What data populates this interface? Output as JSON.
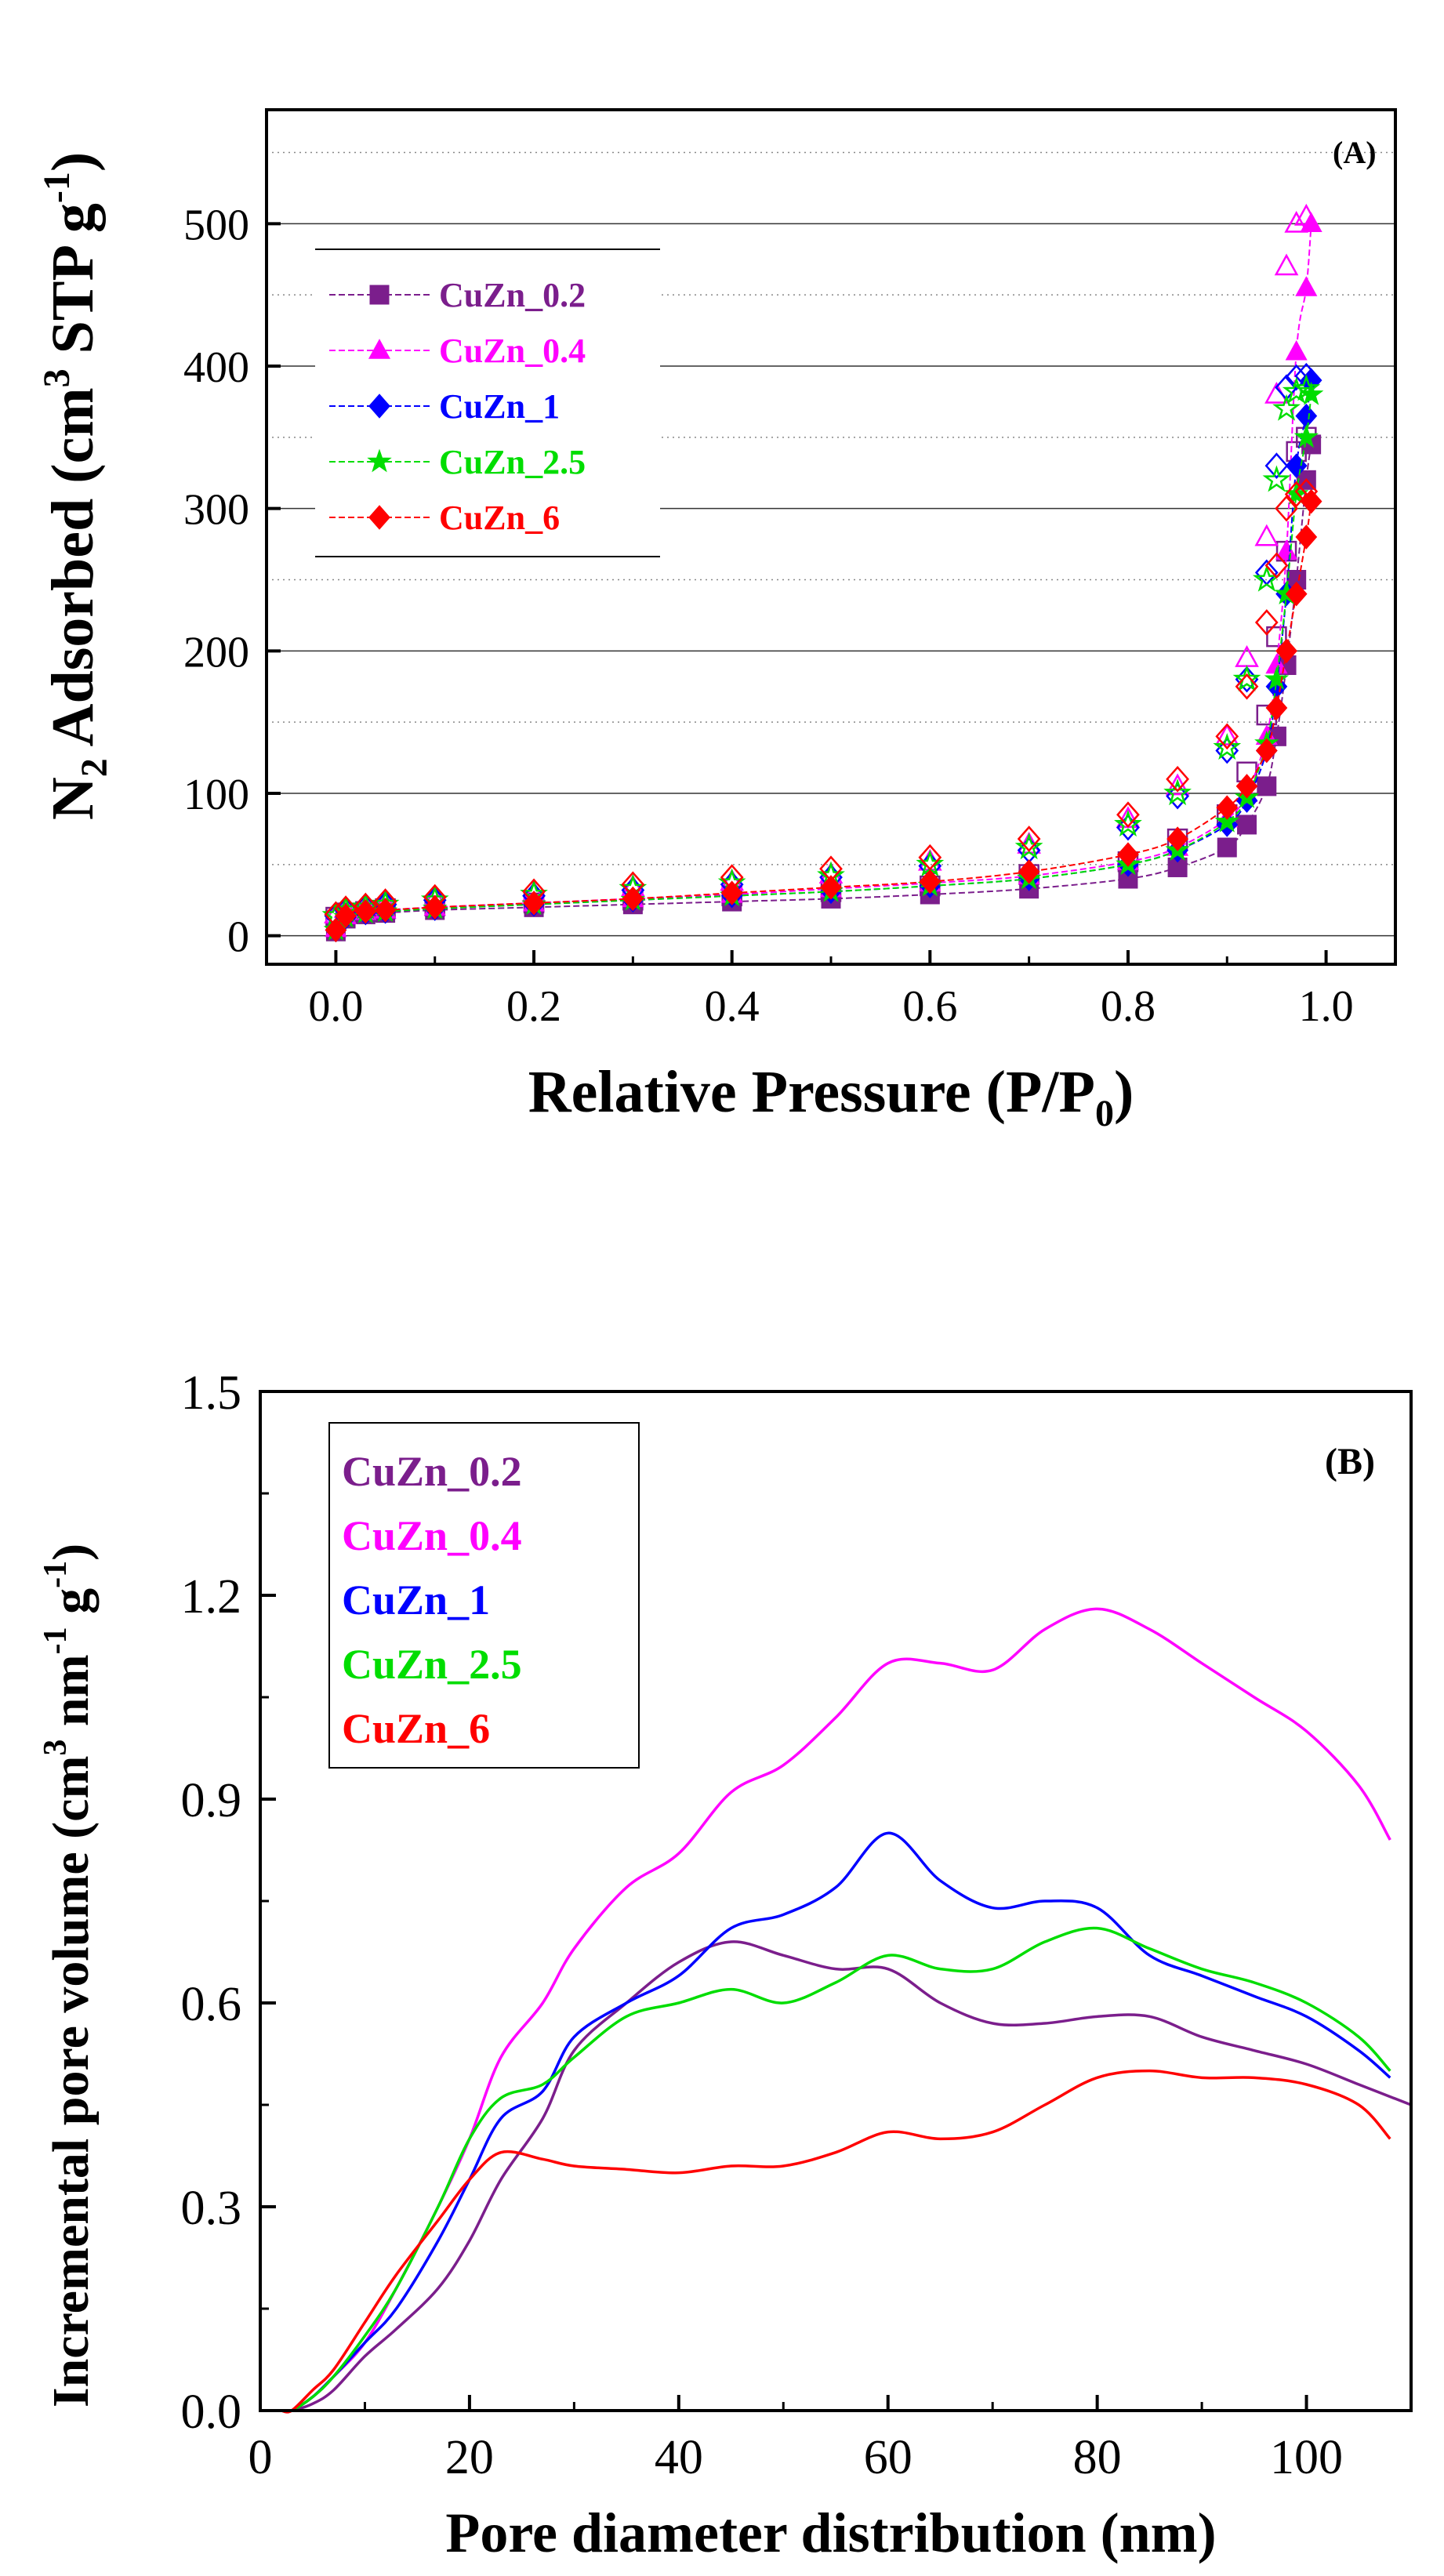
{
  "chart_data": [
    {
      "type": "scatter",
      "panel_label": "(A)",
      "xlabel": "Relative Pressure (P/P",
      "xlabel_sub": "0",
      "xlabel_suffix": ")",
      "ylabel_prefix": "N",
      "ylabel_sub": "2",
      "ylabel_mid": " Adsorbed (cm",
      "ylabel_sup": "3",
      "ylabel_mid2": " STP g",
      "ylabel_sup2": "-1",
      "ylabel_suffix": ")",
      "xlim": [
        -0.07,
        1.07
      ],
      "ylim": [
        -20,
        580
      ],
      "xticks": [
        0.0,
        0.2,
        0.4,
        0.6,
        0.8,
        1.0
      ],
      "xtick_labels": [
        "0.0",
        "0.2",
        "0.4",
        "0.6",
        "0.8",
        "1.0"
      ],
      "yticks": [
        0,
        100,
        200,
        300,
        400,
        500
      ],
      "ytick_labels": [
        "0",
        "100",
        "200",
        "300",
        "400",
        "500"
      ],
      "grid_major": [
        0,
        100,
        200,
        300,
        400,
        500
      ],
      "grid_minor": [
        50,
        150,
        250,
        350,
        450,
        550
      ],
      "legend_position": "top-left",
      "series": [
        {
          "name": "CuZn_0.2",
          "color": "#7B1E8C",
          "marker": "square",
          "x": [
            0.0,
            0.01,
            0.03,
            0.05,
            0.1,
            0.2,
            0.3,
            0.4,
            0.5,
            0.6,
            0.7,
            0.8,
            0.85,
            0.9,
            0.92,
            0.94,
            0.95,
            0.96,
            0.97,
            0.98,
            0.985
          ],
          "adsorption": [
            3,
            12,
            15,
            16,
            18,
            20,
            22,
            24,
            26,
            29,
            33,
            40,
            48,
            62,
            78,
            105,
            140,
            190,
            250,
            320,
            345
          ],
          "desorption": [
            13,
            16,
            17,
            19,
            21,
            23,
            25,
            28,
            31,
            35,
            43,
            52,
            68,
            85,
            115,
            155,
            210,
            270,
            340,
            350
          ]
        },
        {
          "name": "CuZn_0.4",
          "color": "#FF00FF",
          "marker": "triangle",
          "x": [
            0.0,
            0.01,
            0.03,
            0.05,
            0.1,
            0.2,
            0.3,
            0.4,
            0.5,
            0.6,
            0.7,
            0.8,
            0.85,
            0.9,
            0.92,
            0.94,
            0.95,
            0.96,
            0.97,
            0.98,
            0.985
          ],
          "adsorption": [
            5,
            14,
            17,
            18,
            20,
            23,
            26,
            29,
            33,
            37,
            42,
            52,
            62,
            82,
            100,
            140,
            190,
            270,
            410,
            455,
            500
          ],
          "desorption": [
            15,
            19,
            21,
            23,
            26,
            30,
            34,
            38,
            43,
            52,
            64,
            82,
            105,
            140,
            195,
            280,
            380,
            470,
            500,
            505
          ]
        },
        {
          "name": "CuZn_1",
          "color": "#0000FF",
          "marker": "diamond",
          "x": [
            0.0,
            0.01,
            0.03,
            0.05,
            0.1,
            0.2,
            0.3,
            0.4,
            0.5,
            0.6,
            0.7,
            0.8,
            0.85,
            0.9,
            0.92,
            0.94,
            0.95,
            0.96,
            0.97,
            0.98,
            0.985
          ],
          "adsorption": [
            4,
            13,
            16,
            17,
            19,
            22,
            25,
            28,
            31,
            35,
            40,
            50,
            60,
            78,
            95,
            130,
            175,
            240,
            330,
            365,
            390
          ],
          "desorption": [
            14,
            18,
            20,
            22,
            25,
            28,
            32,
            36,
            41,
            49,
            60,
            76,
            98,
            130,
            180,
            255,
            330,
            385,
            392,
            393
          ]
        },
        {
          "name": "CuZn_2.5",
          "color": "#00DD00",
          "marker": "star",
          "x": [
            0.0,
            0.01,
            0.03,
            0.05,
            0.1,
            0.2,
            0.3,
            0.4,
            0.5,
            0.6,
            0.7,
            0.8,
            0.85,
            0.9,
            0.92,
            0.94,
            0.95,
            0.96,
            0.97,
            0.98,
            0.985
          ],
          "adsorption": [
            4,
            13,
            16,
            17,
            19,
            22,
            25,
            28,
            31,
            35,
            40,
            50,
            60,
            80,
            97,
            135,
            180,
            240,
            310,
            350,
            380
          ],
          "desorption": [
            14,
            18,
            20,
            22,
            25,
            29,
            33,
            37,
            42,
            50,
            62,
            78,
            100,
            132,
            180,
            250,
            320,
            370,
            382,
            384
          ]
        },
        {
          "name": "CuZn_6",
          "color": "#FF0000",
          "marker": "diamond",
          "x": [
            0.0,
            0.01,
            0.03,
            0.05,
            0.1,
            0.2,
            0.3,
            0.4,
            0.5,
            0.6,
            0.7,
            0.8,
            0.85,
            0.9,
            0.92,
            0.94,
            0.95,
            0.96,
            0.97,
            0.98,
            0.985
          ],
          "adsorption": [
            4,
            14,
            17,
            18,
            20,
            23,
            26,
            30,
            34,
            38,
            45,
            57,
            68,
            90,
            105,
            130,
            160,
            200,
            240,
            280,
            305
          ],
          "desorption": [
            15,
            19,
            21,
            24,
            27,
            31,
            36,
            41,
            47,
            55,
            68,
            85,
            110,
            140,
            175,
            220,
            260,
            300,
            310,
            312
          ]
        }
      ]
    },
    {
      "type": "line",
      "panel_label": "(B)",
      "xlabel": "Pore diameter distribution (nm)",
      "ylabel_prefix": "Incremental pore volume (cm",
      "ylabel_sup": "3",
      "ylabel_mid": " nm",
      "ylabel_sup2": "-1",
      "ylabel_mid2": " g",
      "ylabel_sup3": "-1",
      "ylabel_suffix": ")",
      "xlim": [
        0,
        110
      ],
      "ylim": [
        0.0,
        1.5
      ],
      "xticks": [
        0,
        20,
        40,
        60,
        80,
        100
      ],
      "xtick_labels": [
        "0",
        "20",
        "40",
        "60",
        "80",
        "100"
      ],
      "yticks": [
        0.0,
        0.3,
        0.6,
        0.9,
        1.2,
        1.5
      ],
      "ytick_labels": [
        "0.0",
        "0.3",
        "0.6",
        "0.9",
        "1.2",
        "1.5"
      ],
      "legend_position": "top-left",
      "series": [
        {
          "name": "CuZn_0.2",
          "color": "#7B1E8C",
          "x": [
            2,
            3,
            5,
            7,
            10,
            13,
            17,
            20,
            23,
            27,
            30,
            35,
            40,
            45,
            50,
            55,
            60,
            65,
            70,
            75,
            80,
            85,
            90,
            95,
            100,
            105,
            110
          ],
          "values": [
            0.0,
            0.0,
            0.01,
            0.03,
            0.08,
            0.12,
            0.18,
            0.25,
            0.34,
            0.43,
            0.53,
            0.6,
            0.66,
            0.69,
            0.67,
            0.65,
            0.65,
            0.6,
            0.57,
            0.57,
            0.58,
            0.58,
            0.55,
            0.53,
            0.51,
            0.48,
            0.45
          ]
        },
        {
          "name": "CuZn_0.4",
          "color": "#FF00FF",
          "x": [
            2,
            3,
            5,
            7,
            10,
            13,
            17,
            20,
            23,
            27,
            30,
            35,
            40,
            45,
            50,
            55,
            60,
            65,
            70,
            75,
            80,
            85,
            90,
            95,
            100,
            105,
            108
          ],
          "values": [
            0.0,
            0.0,
            0.02,
            0.05,
            0.1,
            0.18,
            0.3,
            0.4,
            0.52,
            0.6,
            0.68,
            0.77,
            0.82,
            0.91,
            0.95,
            1.02,
            1.1,
            1.1,
            1.09,
            1.15,
            1.18,
            1.15,
            1.1,
            1.05,
            1.0,
            0.92,
            0.84
          ]
        },
        {
          "name": "CuZn_1",
          "color": "#0000FF",
          "x": [
            2,
            3,
            5,
            7,
            10,
            13,
            17,
            20,
            23,
            27,
            30,
            35,
            40,
            45,
            50,
            55,
            60,
            65,
            70,
            75,
            80,
            85,
            90,
            95,
            100,
            105,
            108
          ],
          "values": [
            0.0,
            0.0,
            0.02,
            0.05,
            0.1,
            0.15,
            0.25,
            0.34,
            0.43,
            0.47,
            0.55,
            0.6,
            0.64,
            0.71,
            0.73,
            0.77,
            0.85,
            0.78,
            0.74,
            0.75,
            0.74,
            0.67,
            0.64,
            0.61,
            0.58,
            0.53,
            0.49
          ]
        },
        {
          "name": "CuZn_2.5",
          "color": "#00DD00",
          "x": [
            2,
            3,
            5,
            7,
            10,
            13,
            17,
            20,
            23,
            27,
            30,
            35,
            40,
            45,
            50,
            55,
            60,
            65,
            70,
            75,
            80,
            85,
            90,
            95,
            100,
            105,
            108
          ],
          "values": [
            0.0,
            0.0,
            0.02,
            0.05,
            0.11,
            0.18,
            0.3,
            0.4,
            0.46,
            0.48,
            0.52,
            0.58,
            0.6,
            0.62,
            0.6,
            0.63,
            0.67,
            0.65,
            0.65,
            0.69,
            0.71,
            0.68,
            0.65,
            0.63,
            0.6,
            0.55,
            0.5
          ]
        },
        {
          "name": "CuZn_6",
          "color": "#FF0000",
          "x": [
            2,
            3,
            5,
            7,
            10,
            13,
            17,
            20,
            23,
            27,
            30,
            35,
            40,
            45,
            50,
            55,
            60,
            65,
            70,
            75,
            80,
            85,
            90,
            95,
            100,
            105,
            108
          ],
          "values": [
            0.0,
            0.0,
            0.03,
            0.06,
            0.13,
            0.2,
            0.28,
            0.34,
            0.38,
            0.37,
            0.36,
            0.355,
            0.35,
            0.36,
            0.36,
            0.38,
            0.41,
            0.4,
            0.41,
            0.45,
            0.49,
            0.5,
            0.49,
            0.49,
            0.48,
            0.45,
            0.4
          ]
        }
      ]
    }
  ]
}
